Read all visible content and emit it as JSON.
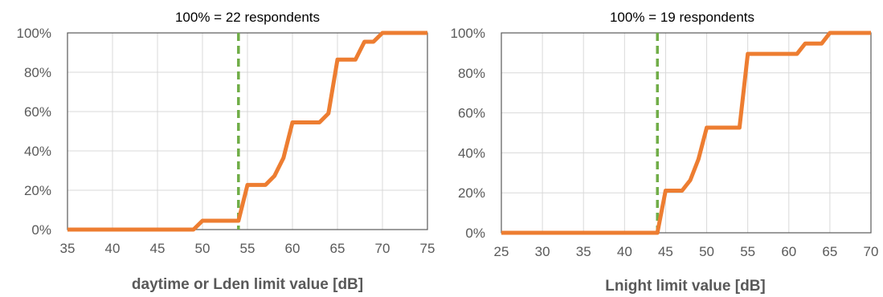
{
  "chart_data": [
    {
      "type": "line",
      "title": "100% = 22 respondents",
      "xlabel": "daytime or Lden limit value [dB]",
      "ylabel": "",
      "xlim": [
        35,
        75
      ],
      "ylim": [
        0,
        100
      ],
      "x_ticks": [
        35,
        40,
        45,
        50,
        55,
        60,
        65,
        70,
        75
      ],
      "y_ticks": [
        0,
        20,
        40,
        60,
        80,
        100
      ],
      "y_tick_labels": [
        "0%",
        "20%",
        "40%",
        "60%",
        "80%",
        "100%"
      ],
      "grid": true,
      "reference_line": {
        "x": 54,
        "color": "#70ad47",
        "style": "dashed"
      },
      "series": [
        {
          "color": "#ed7d31",
          "points": [
            [
              35,
              0
            ],
            [
              49,
              0
            ],
            [
              50,
              4.5
            ],
            [
              54,
              4.5
            ],
            [
              55,
              22.7
            ],
            [
              57,
              22.7
            ],
            [
              58,
              27.3
            ],
            [
              59,
              36.4
            ],
            [
              60,
              54.5
            ],
            [
              63,
              54.5
            ],
            [
              64,
              59.1
            ],
            [
              65,
              86.4
            ],
            [
              67,
              86.4
            ],
            [
              68,
              95.5
            ],
            [
              69,
              95.5
            ],
            [
              70,
              100
            ],
            [
              75,
              100
            ]
          ]
        }
      ]
    },
    {
      "type": "line",
      "title": "100% = 19 respondents",
      "xlabel": "Lnight limit value [dB]",
      "ylabel": "",
      "xlim": [
        25,
        70
      ],
      "ylim": [
        0,
        100
      ],
      "x_ticks": [
        25,
        30,
        35,
        40,
        45,
        50,
        55,
        60,
        65,
        70
      ],
      "y_ticks": [
        0,
        20,
        40,
        60,
        80,
        100
      ],
      "y_tick_labels": [
        "0%",
        "20%",
        "40%",
        "60%",
        "80%",
        "100%"
      ],
      "grid": true,
      "reference_line": {
        "x": 44,
        "color": "#70ad47",
        "style": "dashed"
      },
      "series": [
        {
          "color": "#ed7d31",
          "points": [
            [
              25,
              0
            ],
            [
              44,
              0
            ],
            [
              45,
              21.1
            ],
            [
              47,
              21.1
            ],
            [
              48,
              26.3
            ],
            [
              49,
              36.8
            ],
            [
              50,
              52.6
            ],
            [
              54,
              52.6
            ],
            [
              55,
              89.5
            ],
            [
              61,
              89.5
            ],
            [
              62,
              94.7
            ],
            [
              64,
              94.7
            ],
            [
              65,
              100
            ],
            [
              70,
              100
            ]
          ]
        }
      ]
    }
  ]
}
